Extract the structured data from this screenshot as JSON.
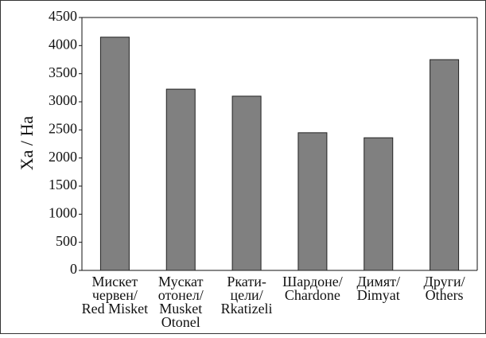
{
  "chart_data": {
    "type": "bar",
    "ylabel": "Ха / На",
    "categories": [
      "Мискет\nчервен/\nRed Misket",
      "Мускат\nотонел/\nMusket\nOtonel",
      "Ркати-\nцели/\nRkatizeli",
      "Шардоне/\nChardone",
      "Димят/\nDimyat",
      "Други/\nOthers"
    ],
    "values": [
      4150,
      3225,
      3100,
      2450,
      2360,
      3750
    ],
    "color": "#808080",
    "ylim": [
      0,
      4500
    ],
    "yticks": [
      0,
      500,
      1000,
      1500,
      2000,
      2500,
      3000,
      3500,
      4000,
      4500
    ],
    "grid": false
  }
}
